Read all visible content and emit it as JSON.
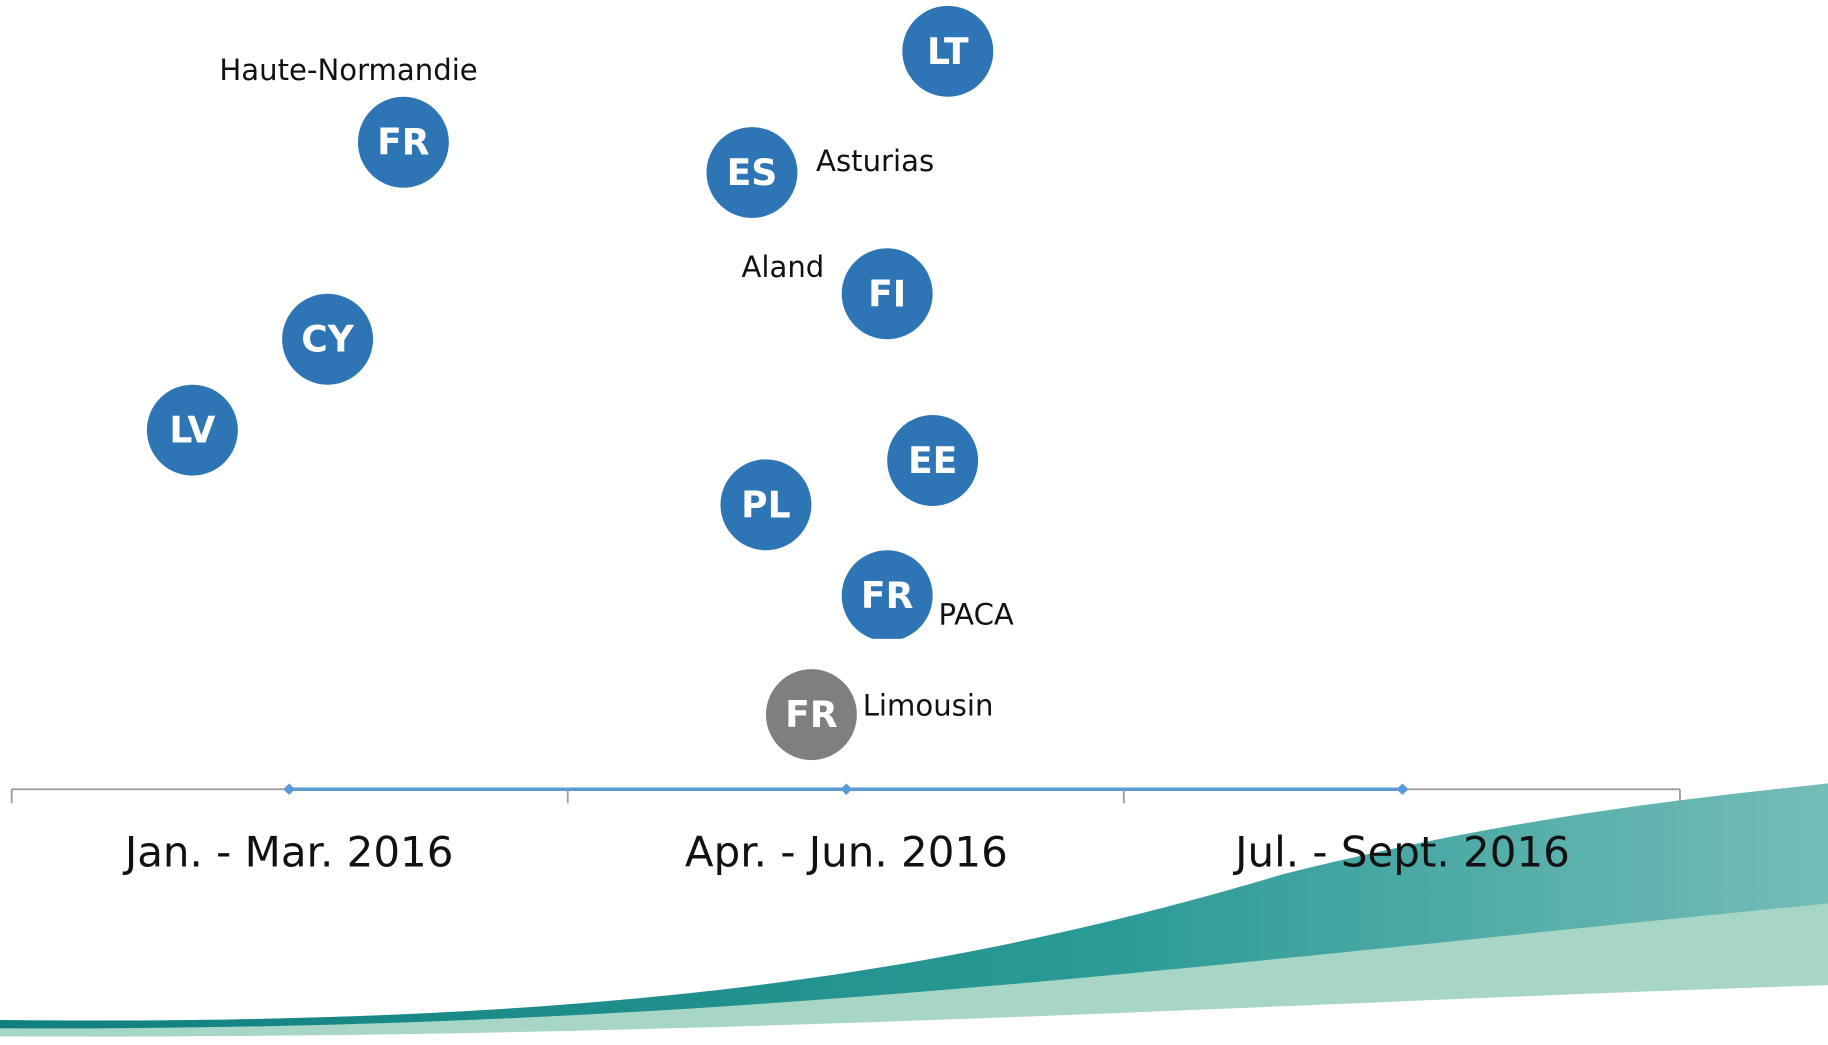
{
  "timeline": {
    "periods": [
      "Jan. - Mar. 2016",
      "Apr. - Jun. 2016",
      "Jul. - Sept. 2016"
    ]
  },
  "bubbles": [
    {
      "code": "LT"
    },
    {
      "code": "FR",
      "region": "Haute-Normandie"
    },
    {
      "code": "ES",
      "region": "Asturias"
    },
    {
      "code": "FI",
      "region": "Aland"
    },
    {
      "code": "CY"
    },
    {
      "code": "LV"
    },
    {
      "code": "EE"
    },
    {
      "code": "PL"
    },
    {
      "code": "FR",
      "region": "PACA"
    },
    {
      "code": "FR",
      "region": "Limousin"
    }
  ]
}
